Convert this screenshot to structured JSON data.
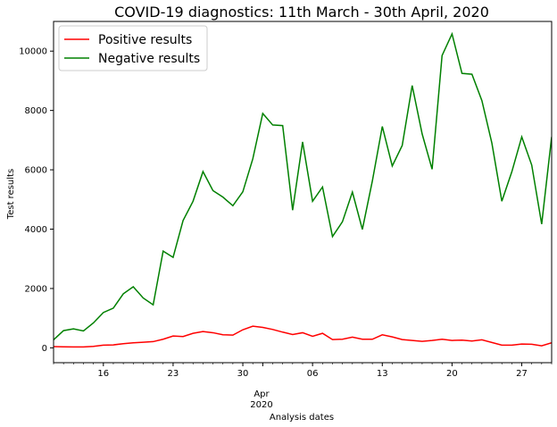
{
  "chart_data": {
    "type": "line",
    "title": "COVID-19 diagnostics: 11th March - 30th April, 2020",
    "xlabel": "Analysis dates",
    "ylabel": "Test results",
    "x_start": "2020-03-11",
    "x_end": "2020-04-30",
    "x_tick_labels": [
      "16",
      "23",
      "30",
      "06",
      "13",
      "20",
      "27"
    ],
    "x_tick_dates": [
      "2020-03-16",
      "2020-03-23",
      "2020-03-30",
      "2020-04-06",
      "2020-04-13",
      "2020-04-20",
      "2020-04-27"
    ],
    "x_secondary_label": [
      "Apr",
      "2020"
    ],
    "y_ticks": [
      0,
      2000,
      4000,
      6000,
      8000,
      10000
    ],
    "ylim": [
      -500,
      11000
    ],
    "legend_position": "top-left",
    "grid": false,
    "series": [
      {
        "name": "Positive results",
        "color": "#ff0000",
        "values": [
          40,
          35,
          30,
          30,
          50,
          90,
          100,
          140,
          170,
          190,
          210,
          290,
          400,
          380,
          490,
          550,
          510,
          440,
          430,
          610,
          730,
          690,
          620,
          530,
          450,
          510,
          390,
          490,
          280,
          290,
          360,
          290,
          290,
          440,
          370,
          280,
          250,
          220,
          250,
          290,
          250,
          260,
          230,
          270,
          180,
          90,
          90,
          130,
          120,
          70,
          170
        ]
      },
      {
        "name": "Negative results",
        "color": "#008000",
        "values": [
          270,
          580,
          640,
          570,
          840,
          1190,
          1340,
          1820,
          2060,
          1680,
          1450,
          3260,
          3050,
          4290,
          4940,
          5940,
          5300,
          5080,
          4790,
          5260,
          6370,
          7900,
          7510,
          7490,
          4640,
          6940,
          4940,
          5420,
          3750,
          4250,
          5250,
          3990,
          5620,
          7460,
          6130,
          6820,
          8840,
          7210,
          6020,
          9850,
          10580,
          9250,
          9220,
          8330,
          6900,
          4940,
          5930,
          7110,
          6160,
          4170,
          7110
        ]
      }
    ]
  }
}
